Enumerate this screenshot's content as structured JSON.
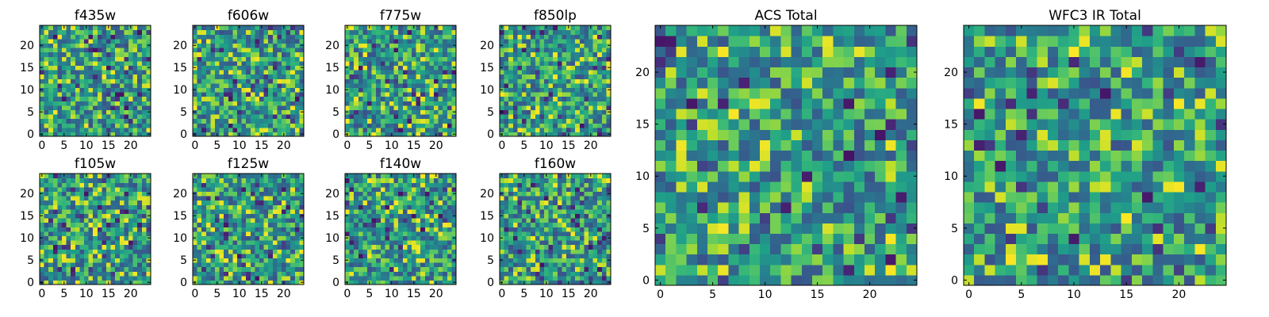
{
  "chart_data": [
    {
      "type": "heatmap",
      "title": "f435w",
      "xlim": [
        0,
        25
      ],
      "ylim": [
        0,
        25
      ],
      "xticks": [
        0,
        5,
        10,
        15,
        20
      ],
      "yticks": [
        0,
        5,
        10,
        15,
        20
      ],
      "colormap": "viridis",
      "grid": false,
      "seed": 11
    },
    {
      "type": "heatmap",
      "title": "f606w",
      "xlim": [
        0,
        25
      ],
      "ylim": [
        0,
        25
      ],
      "xticks": [
        0,
        5,
        10,
        15,
        20
      ],
      "yticks": [
        0,
        5,
        10,
        15,
        20
      ],
      "colormap": "viridis",
      "grid": false,
      "seed": 23
    },
    {
      "type": "heatmap",
      "title": "f775w",
      "xlim": [
        0,
        25
      ],
      "ylim": [
        0,
        25
      ],
      "xticks": [
        0,
        5,
        10,
        15,
        20
      ],
      "yticks": [
        0,
        5,
        10,
        15,
        20
      ],
      "colormap": "viridis",
      "grid": false,
      "seed": 37
    },
    {
      "type": "heatmap",
      "title": "f850lp",
      "xlim": [
        0,
        25
      ],
      "ylim": [
        0,
        25
      ],
      "xticks": [
        0,
        5,
        10,
        15,
        20
      ],
      "yticks": [
        0,
        5,
        10,
        15,
        20
      ],
      "colormap": "viridis",
      "grid": false,
      "seed": 41
    },
    {
      "type": "heatmap",
      "title": "f105w",
      "xlim": [
        0,
        25
      ],
      "ylim": [
        0,
        25
      ],
      "xticks": [
        0,
        5,
        10,
        15,
        20
      ],
      "yticks": [
        0,
        5,
        10,
        15,
        20
      ],
      "colormap": "viridis",
      "grid": false,
      "seed": 53
    },
    {
      "type": "heatmap",
      "title": "f125w",
      "xlim": [
        0,
        25
      ],
      "ylim": [
        0,
        25
      ],
      "xticks": [
        0,
        5,
        10,
        15,
        20
      ],
      "yticks": [
        0,
        5,
        10,
        15,
        20
      ],
      "colormap": "viridis",
      "grid": false,
      "seed": 67
    },
    {
      "type": "heatmap",
      "title": "f140w",
      "xlim": [
        0,
        25
      ],
      "ylim": [
        0,
        25
      ],
      "xticks": [
        0,
        5,
        10,
        15,
        20
      ],
      "yticks": [
        0,
        5,
        10,
        15,
        20
      ],
      "colormap": "viridis",
      "grid": false,
      "seed": 71
    },
    {
      "type": "heatmap",
      "title": "f160w",
      "xlim": [
        0,
        25
      ],
      "ylim": [
        0,
        25
      ],
      "xticks": [
        0,
        5,
        10,
        15,
        20
      ],
      "yticks": [
        0,
        5,
        10,
        15,
        20
      ],
      "colormap": "viridis",
      "grid": false,
      "seed": 89
    },
    {
      "type": "heatmap",
      "title": "ACS Total",
      "xlim": [
        0,
        25
      ],
      "ylim": [
        0,
        25
      ],
      "xticks": [
        0,
        5,
        10,
        15,
        20
      ],
      "yticks": [
        0,
        5,
        10,
        15,
        20
      ],
      "colormap": "viridis",
      "grid": false,
      "seed": 97
    },
    {
      "type": "heatmap",
      "title": "WFC3 IR Total",
      "xlim": [
        0,
        25
      ],
      "ylim": [
        0,
        25
      ],
      "xticks": [
        0,
        5,
        10,
        15,
        20
      ],
      "yticks": [
        0,
        5,
        10,
        15,
        20
      ],
      "colormap": "viridis",
      "grid": false,
      "seed": 131
    }
  ]
}
